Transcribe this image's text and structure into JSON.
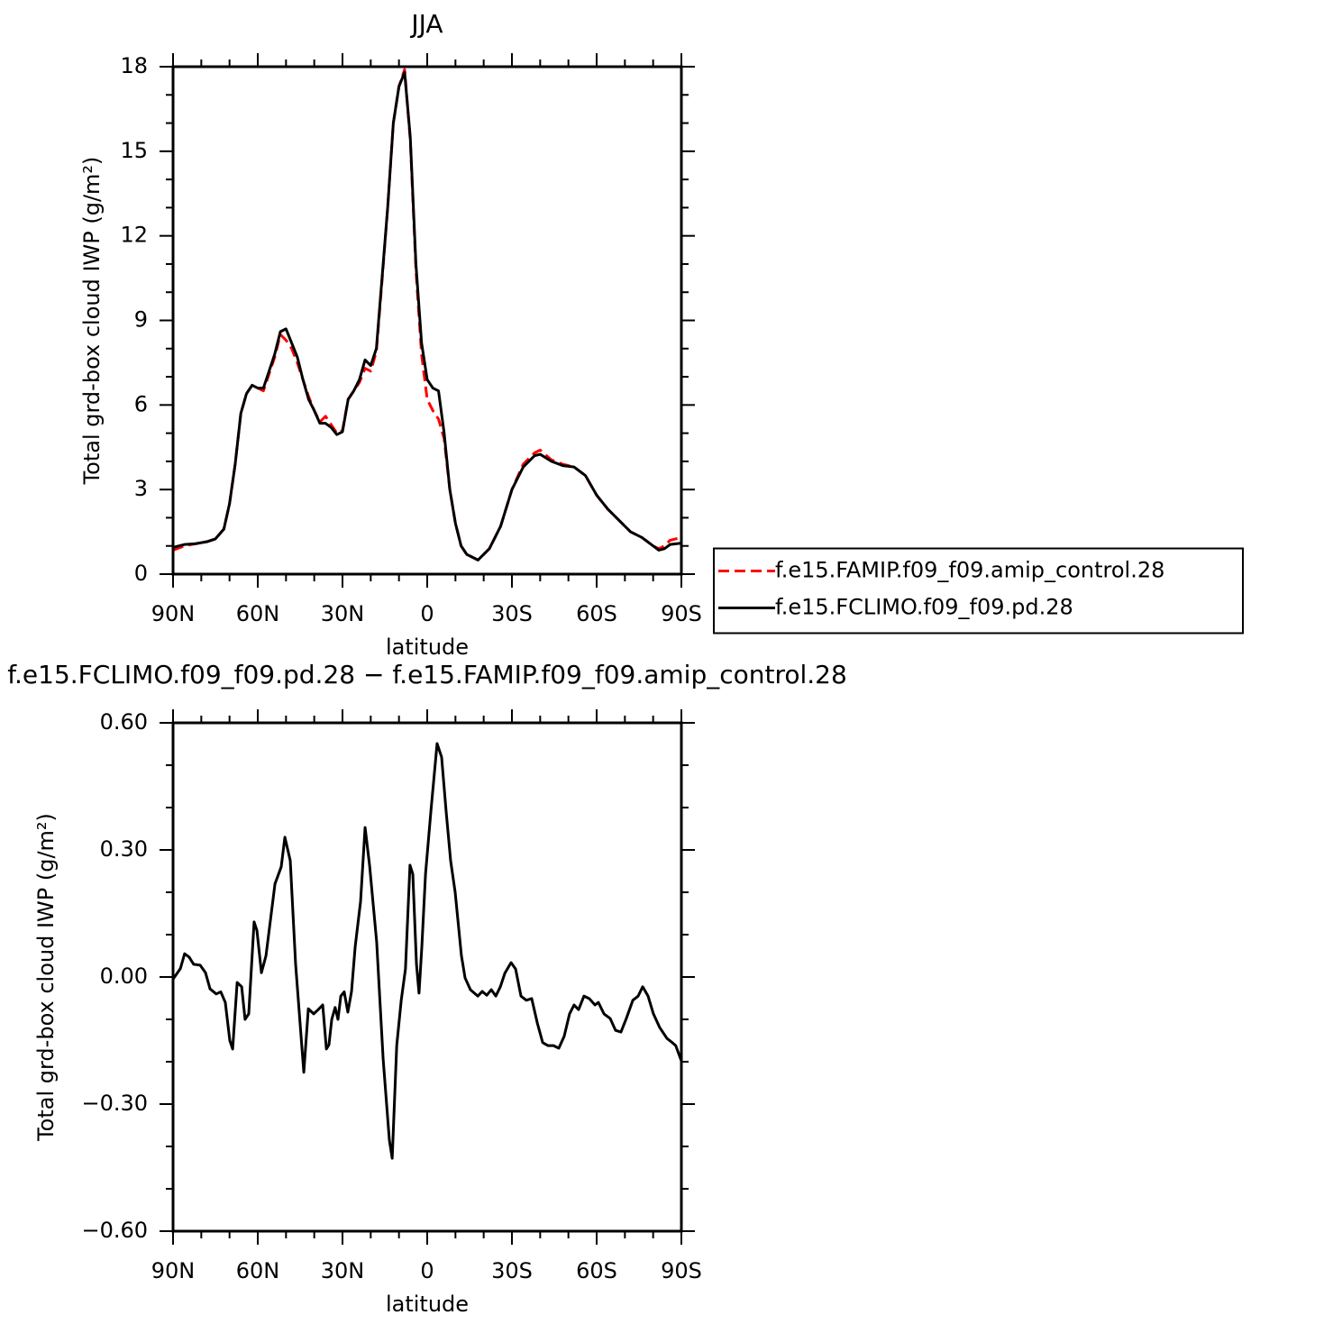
{
  "chart_data": [
    {
      "type": "line",
      "title": "JJA",
      "xlabel": "latitude",
      "ylabel": "Total grd-box cloud IWP (g/m²)",
      "x": [
        90,
        86,
        82,
        78,
        75,
        72,
        70,
        68,
        66,
        64,
        62,
        60,
        58,
        56,
        54,
        52,
        50,
        48,
        46,
        44,
        42,
        40,
        38,
        36,
        34,
        32,
        30,
        28,
        26,
        24,
        22,
        20,
        18,
        16,
        14,
        12,
        10,
        8,
        6,
        4,
        2,
        0,
        -2,
        -4,
        -6,
        -8,
        -10,
        -12,
        -14,
        -18,
        -22,
        -26,
        -30,
        -34,
        -38,
        -40,
        -44,
        -48,
        -52,
        -56,
        -60,
        -64,
        -68,
        -72,
        -76,
        -80,
        -82,
        -84,
        -86,
        -90
      ],
      "xlim": [
        90,
        -90
      ],
      "xticks": [
        {
          "value": 90,
          "label": "90N"
        },
        {
          "value": 60,
          "label": "60N"
        },
        {
          "value": 30,
          "label": "30N"
        },
        0,
        {
          "value": -30,
          "label": "30S"
        },
        {
          "value": -60,
          "label": "60S"
        },
        {
          "value": -90,
          "label": "90S"
        }
      ],
      "ylim": [
        0,
        18
      ],
      "yticks": [
        0,
        3,
        6,
        9,
        12,
        15,
        18
      ],
      "legend": "right",
      "series": [
        {
          "name": "f.e15.FAMIP.f09_f09.amip_control.28",
          "color": "#ff0000",
          "line_style": "dashed",
          "values": [
            0.85,
            1.0,
            1.08,
            1.15,
            1.25,
            1.6,
            2.5,
            3.9,
            5.7,
            6.4,
            6.7,
            6.6,
            6.5,
            7.1,
            7.7,
            8.5,
            8.3,
            8.0,
            7.5,
            6.9,
            6.3,
            5.8,
            5.4,
            5.6,
            5.3,
            5.0,
            5.1,
            6.2,
            6.5,
            6.8,
            7.3,
            7.2,
            7.9,
            10.4,
            13.0,
            16.0,
            17.3,
            17.9,
            15.4,
            10.8,
            7.8,
            6.2,
            5.8,
            5.5,
            4.8,
            3.0,
            1.8,
            1.0,
            0.7,
            0.5,
            0.9,
            1.7,
            3.0,
            3.9,
            4.3,
            4.4,
            4.05,
            3.9,
            3.8,
            3.5,
            2.8,
            2.3,
            1.9,
            1.5,
            1.3,
            1.0,
            0.9,
            1.0,
            1.2,
            1.3
          ]
        },
        {
          "name": "f.e15.FCLIMO.f09_f09.pd.28",
          "color": "#000000",
          "line_style": "solid",
          "values": [
            0.95,
            1.05,
            1.08,
            1.15,
            1.25,
            1.6,
            2.5,
            3.9,
            5.7,
            6.4,
            6.7,
            6.6,
            6.6,
            7.2,
            7.8,
            8.6,
            8.7,
            8.2,
            7.7,
            6.9,
            6.2,
            5.8,
            5.35,
            5.35,
            5.2,
            4.95,
            5.05,
            6.2,
            6.5,
            6.9,
            7.6,
            7.4,
            8.0,
            10.5,
            13.0,
            16.0,
            17.3,
            17.8,
            15.5,
            11.0,
            8.2,
            6.9,
            6.6,
            6.5,
            5.0,
            3.0,
            1.8,
            1.0,
            0.7,
            0.5,
            0.9,
            1.7,
            3.0,
            3.8,
            4.2,
            4.25,
            4.0,
            3.85,
            3.8,
            3.5,
            2.8,
            2.3,
            1.9,
            1.5,
            1.3,
            1.0,
            0.85,
            0.9,
            1.05,
            1.1
          ]
        }
      ]
    },
    {
      "type": "line",
      "title": "f.e15.FCLIMO.f09_f09.pd.28 − f.e15.FAMIP.f09_f09.amip_control.28",
      "xlabel": "latitude",
      "ylabel": "Total grd-box cloud IWP (g/m²)",
      "x": [
        90,
        87.4,
        85.9,
        84.3,
        82.7,
        80.4,
        78.5,
        76.9,
        74.7,
        73.1,
        71.5,
        69.9,
        68.9,
        67.3,
        65.7,
        64.5,
        63.2,
        61.3,
        60.3,
        58.7,
        57.1,
        55.5,
        53.9,
        51.7,
        50.4,
        48.5,
        46.6,
        43.7,
        42.1,
        40.2,
        38.6,
        37.0,
        35.7,
        34.8,
        33.8,
        32.6,
        31.6,
        30.6,
        29.4,
        28.1,
        26.8,
        25.5,
        23.6,
        22.0,
        20.4,
        17.9,
        15.6,
        13.4,
        12.4,
        10.8,
        9.2,
        7.7,
        6.1,
        5.1,
        3.8,
        2.9,
        1.9,
        0.6,
        -1.3,
        -3.5,
        -5.1,
        -6.7,
        -8.3,
        -9.9,
        -12.1,
        -13.4,
        -15.3,
        -17.9,
        -19.5,
        -21.1,
        -22.7,
        -24.3,
        -25.9,
        -27.5,
        -29.7,
        -31.3,
        -33.2,
        -35.1,
        -37.0,
        -39.0,
        -40.9,
        -42.8,
        -44.7,
        -46.6,
        -48.5,
        -50.4,
        -52.0,
        -53.6,
        -55.5,
        -57.4,
        -59.4,
        -60.6,
        -62.6,
        -64.8,
        -66.7,
        -68.6,
        -70.5,
        -72.8,
        -74.7,
        -76.3,
        -78.2,
        -80.1,
        -82.3,
        -84.9,
        -86.8,
        -88.0,
        -90
      ],
      "values": [
        -0.005,
        0.02,
        0.055,
        0.047,
        0.03,
        0.028,
        0.01,
        -0.028,
        -0.04,
        -0.035,
        -0.06,
        -0.15,
        -0.17,
        -0.013,
        -0.023,
        -0.1,
        -0.087,
        0.13,
        0.11,
        0.01,
        0.05,
        0.135,
        0.22,
        0.26,
        0.33,
        0.275,
        0.03,
        -0.225,
        -0.075,
        -0.087,
        -0.077,
        -0.066,
        -0.17,
        -0.16,
        -0.1,
        -0.072,
        -0.1,
        -0.045,
        -0.035,
        -0.083,
        -0.034,
        0.072,
        0.178,
        0.353,
        0.263,
        0.083,
        -0.194,
        -0.385,
        -0.428,
        -0.162,
        -0.055,
        0.019,
        0.264,
        0.243,
        0.03,
        -0.038,
        0.072,
        0.243,
        0.391,
        0.551,
        0.519,
        0.391,
        0.274,
        0.2,
        0.051,
        -0.002,
        -0.03,
        -0.045,
        -0.034,
        -0.043,
        -0.03,
        -0.045,
        -0.023,
        0.009,
        0.034,
        0.019,
        -0.045,
        -0.055,
        -0.051,
        -0.109,
        -0.155,
        -0.162,
        -0.162,
        -0.168,
        -0.14,
        -0.087,
        -0.066,
        -0.077,
        -0.045,
        -0.051,
        -0.066,
        -0.06,
        -0.087,
        -0.098,
        -0.126,
        -0.13,
        -0.098,
        -0.055,
        -0.045,
        -0.023,
        -0.045,
        -0.087,
        -0.119,
        -0.145,
        -0.155,
        -0.162,
        -0.198
      ],
      "color": "#000000",
      "xlim": [
        90,
        -90
      ],
      "xticks": [
        {
          "value": 90,
          "label": "90N"
        },
        {
          "value": 60,
          "label": "60N"
        },
        {
          "value": 30,
          "label": "30N"
        },
        0,
        {
          "value": -30,
          "label": "30S"
        },
        {
          "value": -60,
          "label": "60S"
        },
        {
          "value": -90,
          "label": "90S"
        }
      ],
      "ylim": [
        -0.6,
        0.6
      ],
      "yticks": [
        {
          "value": -0.6,
          "label": "−0.60"
        },
        {
          "value": -0.3,
          "label": "−0.30"
        },
        {
          "value": 0,
          "label": "0.00"
        },
        {
          "value": 0.3,
          "label": "0.30"
        },
        {
          "value": 0.6,
          "label": "0.60"
        }
      ]
    }
  ]
}
